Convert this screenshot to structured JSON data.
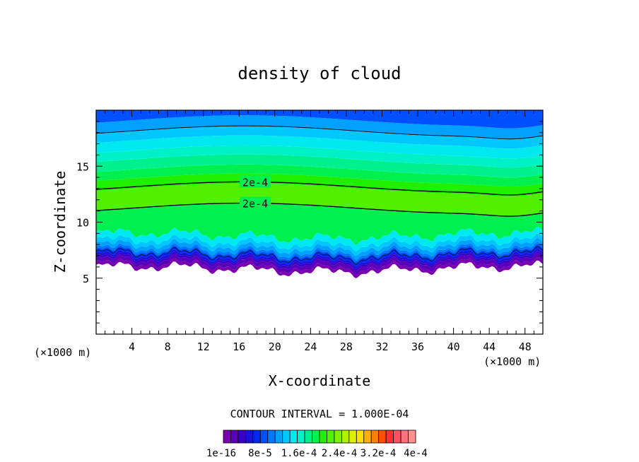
{
  "chart_data": {
    "type": "contour",
    "title": "density of cloud",
    "xlabel": "X-coordinate",
    "ylabel": "Z-coordinate",
    "x_unit": "(×1000 m)",
    "z_unit": "(×1000 m)",
    "xlim": [
      0,
      50
    ],
    "ylim": [
      0,
      20
    ],
    "x_ticks": [
      4,
      8,
      12,
      16,
      20,
      24,
      28,
      32,
      36,
      40,
      44,
      48
    ],
    "y_ticks": [
      5,
      10,
      15
    ],
    "contour_interval_text": "CONTOUR INTERVAL = 1.000E-04",
    "contour_labels": [
      "2e-4",
      "2e-4"
    ],
    "colorbar": {
      "labels": [
        "1e-16",
        "8e-5",
        "1.6e-4",
        "2.4e-4",
        "3.2e-4",
        "4e-4"
      ],
      "colors": [
        "#7a00b0",
        "#5a00b8",
        "#3a00c8",
        "#1a10d8",
        "#0028f0",
        "#0050ff",
        "#0078ff",
        "#00a0ff",
        "#00c8ff",
        "#00e8f0",
        "#00f0c8",
        "#00f090",
        "#00f050",
        "#20f000",
        "#50f000",
        "#80f000",
        "#b0f000",
        "#e0f000",
        "#ffe000",
        "#ffb000",
        "#ff8000",
        "#ff5000",
        "#ff3030",
        "#ff5060",
        "#ff7080",
        "#ff9090"
      ]
    },
    "grid": false,
    "legend": "bottom-center colorbar"
  }
}
